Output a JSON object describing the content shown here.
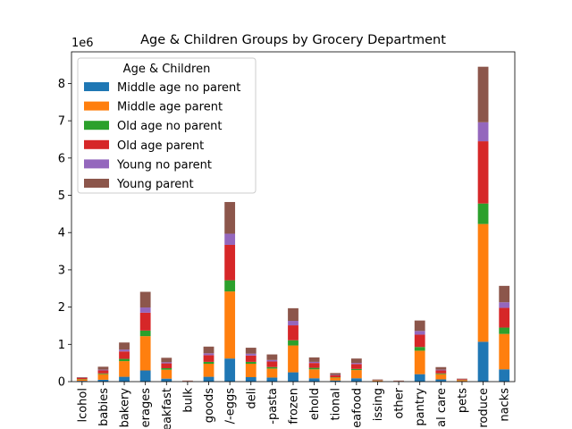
{
  "chart_data": {
    "type": "bar",
    "stacked": true,
    "title": "Age & Children Groups by Grocery Department",
    "xlabel": "",
    "ylabel": "",
    "y_scale_label": "1e6",
    "ylim": [
      0,
      8.85
    ],
    "yticks": [
      0,
      1,
      2,
      3,
      4,
      5,
      6,
      7,
      8
    ],
    "legend": {
      "title": "Age & Children",
      "placement": "top-left"
    },
    "grid": false,
    "categories": [
      "alcohol",
      "babies",
      "bakery",
      "beverages",
      "breakfast",
      "bulk",
      "canned goods",
      "dairy-eggs",
      "deli",
      "dry-pasta",
      "frozen",
      "household",
      "international",
      "seafood",
      "missing",
      "other",
      "pantry",
      "personal care",
      "pets",
      "produce",
      "snacks"
    ],
    "tick_labels": [
      "lcohol",
      "babies",
      "bakery",
      "erages",
      "reakfast",
      "bulk",
      "goods",
      "/-eggs",
      "deli",
      "-pasta",
      "frozen",
      "ehold",
      "tional",
      "eafood",
      "issing",
      "other",
      "pantry",
      "al care",
      "pets",
      "roduce",
      "nacks"
    ],
    "series": [
      {
        "name": "Middle age no parent",
        "color": "#1f77b4",
        "values": [
          0.02,
          0.05,
          0.13,
          0.3,
          0.08,
          0.005,
          0.13,
          0.62,
          0.12,
          0.11,
          0.25,
          0.09,
          0.03,
          0.09,
          0.01,
          0.005,
          0.2,
          0.06,
          0.01,
          1.07,
          0.33
        ]
      },
      {
        "name": "Middle age parent",
        "color": "#ff7f0e",
        "values": [
          0.04,
          0.15,
          0.42,
          0.92,
          0.24,
          0.01,
          0.35,
          1.8,
          0.36,
          0.24,
          0.72,
          0.24,
          0.08,
          0.22,
          0.02,
          0.01,
          0.63,
          0.14,
          0.03,
          3.16,
          0.95
        ]
      },
      {
        "name": "Old age no parent",
        "color": "#2ca02c",
        "values": [
          0.01,
          0.02,
          0.06,
          0.15,
          0.04,
          0.002,
          0.05,
          0.3,
          0.05,
          0.04,
          0.14,
          0.04,
          0.01,
          0.03,
          0.005,
          0.002,
          0.1,
          0.02,
          0.005,
          0.55,
          0.17
        ]
      },
      {
        "name": "Old age parent",
        "color": "#d62728",
        "values": [
          0.03,
          0.08,
          0.2,
          0.48,
          0.13,
          0.005,
          0.18,
          0.95,
          0.17,
          0.15,
          0.4,
          0.13,
          0.05,
          0.13,
          0.01,
          0.005,
          0.33,
          0.08,
          0.015,
          1.67,
          0.53
        ]
      },
      {
        "name": "Young no parent",
        "color": "#9467bd",
        "values": [
          0.005,
          0.02,
          0.05,
          0.14,
          0.03,
          0.002,
          0.05,
          0.3,
          0.05,
          0.04,
          0.12,
          0.03,
          0.01,
          0.03,
          0.003,
          0.002,
          0.1,
          0.02,
          0.005,
          0.51,
          0.15
        ]
      },
      {
        "name": "Young parent",
        "color": "#8c564b",
        "values": [
          0.015,
          0.08,
          0.19,
          0.42,
          0.12,
          0.005,
          0.18,
          0.85,
          0.16,
          0.15,
          0.34,
          0.12,
          0.05,
          0.12,
          0.01,
          0.005,
          0.28,
          0.07,
          0.015,
          1.49,
          0.44
        ]
      }
    ]
  }
}
